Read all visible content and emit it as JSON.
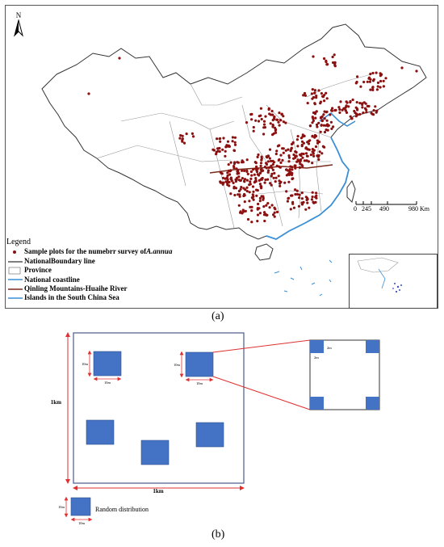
{
  "figure_a": {
    "caption": "(a)",
    "north_label": "N",
    "scale_bar": {
      "ticks": [
        "0",
        "245",
        "490",
        "980 Km"
      ]
    },
    "legend": {
      "title": "Legend",
      "items": [
        {
          "label_prefix": "Sample plots for the numebrr survey of ",
          "label_species": "A.annua",
          "symbol": "dot",
          "color": "#8b1010"
        },
        {
          "label": "NationalBoundary line",
          "symbol": "line",
          "color": "#333333"
        },
        {
          "label": "Province",
          "symbol": "box",
          "color": "#888888"
        },
        {
          "label": "National coastline",
          "symbol": "line",
          "color": "#3a8fd6"
        },
        {
          "label": "Qinling Mountains-Huaihe River",
          "symbol": "line",
          "color": "#7a2a1a"
        },
        {
          "label": "Islands in the South China Sea",
          "symbol": "line",
          "color": "#3a8fd6"
        }
      ]
    }
  },
  "figure_b": {
    "caption": "(b)",
    "outer_width_label": "1km",
    "outer_height_label": "1km",
    "plot_width_label": "10m",
    "plot_height_label": "10m",
    "subplot_label": "2m",
    "random_label": "Random distribution",
    "plot_color": "#4472c4",
    "connector_color": "#e03030"
  }
}
